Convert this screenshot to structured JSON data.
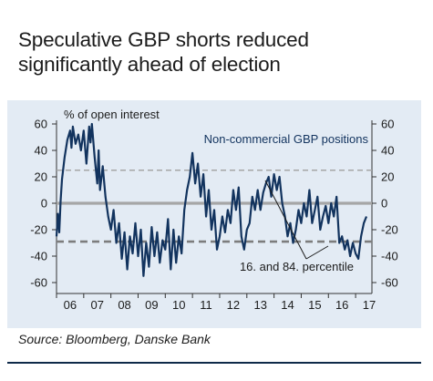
{
  "title_line1": "Speculative GBP shorts reduced",
  "title_line2": "significantly ahead of election",
  "source": "Source: Bloomberg, Danske Bank",
  "colors": {
    "series": "#12335e",
    "percentile": "#7d7d7d",
    "panel": "#e3ebf4"
  },
  "chart_data": {
    "type": "line",
    "ylabel": "% of open interest",
    "legend": "Non-commercial GBP positions",
    "annotation": "16. and 84. percentile",
    "ylim": [
      -60,
      60
    ],
    "yticks": [
      -60,
      -40,
      -20,
      0,
      20,
      40,
      60
    ],
    "ytick_labels": [
      "-60",
      "-40",
      "-20",
      "0",
      "20",
      "40",
      "60"
    ],
    "xlim": [
      2006,
      2017.6
    ],
    "xticks": [
      "06",
      "07",
      "08",
      "09",
      "10",
      "11",
      "12",
      "13",
      "14",
      "15",
      "16",
      "17"
    ],
    "grid": false,
    "zero_line": 0,
    "percentile_16": -29,
    "percentile_84": 25,
    "series": [
      {
        "x": [
          2006.0,
          2006.05,
          2006.1,
          2006.15,
          2006.2,
          2006.3,
          2006.4,
          2006.5,
          2006.55,
          2006.6,
          2006.7,
          2006.8,
          2006.9,
          2007.0,
          2007.1,
          2007.2,
          2007.25,
          2007.3,
          2007.4,
          2007.5,
          2007.55,
          2007.6,
          2007.7,
          2007.8,
          2007.9,
          2008.0,
          2008.1,
          2008.2,
          2008.3,
          2008.4,
          2008.5,
          2008.6,
          2008.7,
          2008.8,
          2008.9,
          2009.0,
          2009.1,
          2009.2,
          2009.3,
          2009.4,
          2009.5,
          2009.6,
          2009.7,
          2009.8,
          2009.9,
          2010.0,
          2010.1,
          2010.2,
          2010.3,
          2010.4,
          2010.5,
          2010.6,
          2010.7,
          2010.8,
          2010.9,
          2011.0,
          2011.1,
          2011.2,
          2011.3,
          2011.4,
          2011.5,
          2011.6,
          2011.7,
          2011.8,
          2011.9,
          2012.0,
          2012.1,
          2012.2,
          2012.3,
          2012.4,
          2012.5,
          2012.6,
          2012.7,
          2012.8,
          2012.9,
          2013.0,
          2013.1,
          2013.2,
          2013.3,
          2013.4,
          2013.5,
          2013.6,
          2013.7,
          2013.8,
          2013.9,
          2014.0,
          2014.1,
          2014.2,
          2014.3,
          2014.4,
          2014.5,
          2014.6,
          2014.7,
          2014.8,
          2014.9,
          2015.0,
          2015.1,
          2015.2,
          2015.3,
          2015.4,
          2015.5,
          2015.6,
          2015.7,
          2015.8,
          2015.9,
          2016.0,
          2016.1,
          2016.2,
          2016.3,
          2016.4,
          2016.5,
          2016.6,
          2016.7,
          2016.8,
          2016.9,
          2017.0,
          2017.1,
          2017.2,
          2017.3,
          2017.4
        ],
        "y": [
          -25,
          -8,
          -22,
          2,
          18,
          35,
          48,
          55,
          42,
          58,
          45,
          52,
          40,
          55,
          30,
          58,
          46,
          60,
          35,
          15,
          40,
          10,
          28,
          5,
          -10,
          -20,
          -5,
          -30,
          -15,
          -42,
          -22,
          -50,
          -25,
          -38,
          -15,
          -40,
          -20,
          -55,
          -30,
          -48,
          -18,
          -40,
          -22,
          -45,
          -28,
          -35,
          -12,
          -50,
          -20,
          -45,
          -25,
          -38,
          -5,
          10,
          20,
          38,
          15,
          30,
          5,
          22,
          -10,
          10,
          -20,
          -5,
          -35,
          -25,
          -10,
          -22,
          -5,
          -15,
          10,
          -5,
          12,
          -25,
          -35,
          -20,
          -15,
          5,
          -5,
          10,
          -5,
          8,
          15,
          20,
          5,
          22,
          10,
          20,
          0,
          -10,
          -25,
          -15,
          -30,
          -20,
          -5,
          -15,
          0,
          -10,
          10,
          -15,
          -5,
          5,
          -20,
          -10,
          -2,
          -15,
          0,
          -10,
          5,
          -30,
          -25,
          -35,
          -28,
          -40,
          -30,
          -38,
          -42,
          -25,
          -15,
          -10
        ]
      }
    ]
  }
}
